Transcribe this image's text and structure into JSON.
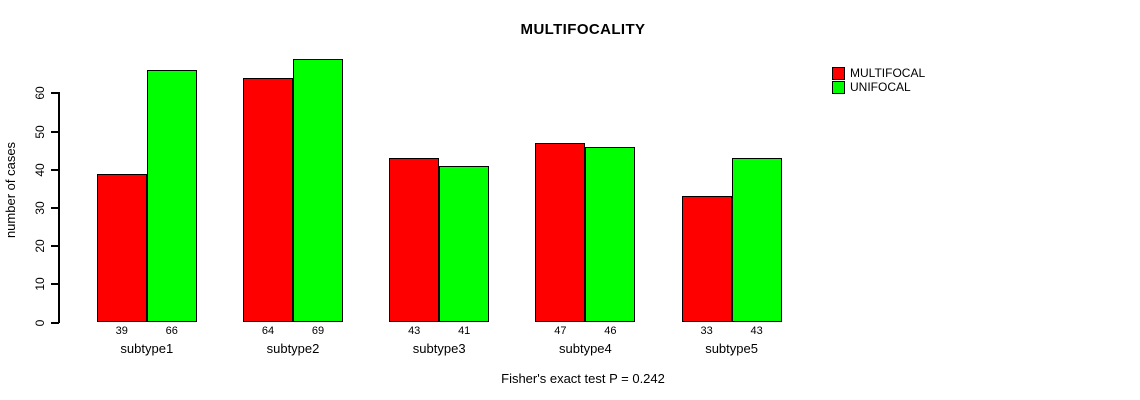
{
  "chart_data": {
    "type": "bar",
    "title": "MULTIFOCALITY",
    "ylabel": "number of cases",
    "xlabel": "",
    "categories": [
      "subtype1",
      "subtype2",
      "subtype3",
      "subtype4",
      "subtype5"
    ],
    "series": [
      {
        "name": "MULTIFOCAL",
        "color": "#ff0000",
        "values": [
          39,
          64,
          43,
          47,
          33
        ]
      },
      {
        "name": "UNIFOCAL",
        "color": "#00ff00",
        "values": [
          66,
          69,
          41,
          46,
          43
        ]
      }
    ],
    "value_labels_shown": true,
    "yticks": [
      0,
      10,
      20,
      30,
      40,
      50,
      60
    ],
    "ylim": [
      0,
      69
    ],
    "grid": false,
    "legend_position": "top-right",
    "annotation": "Fisher's exact test P = 0.242",
    "background_color": "#ffffff",
    "axis_color": "#000000"
  }
}
